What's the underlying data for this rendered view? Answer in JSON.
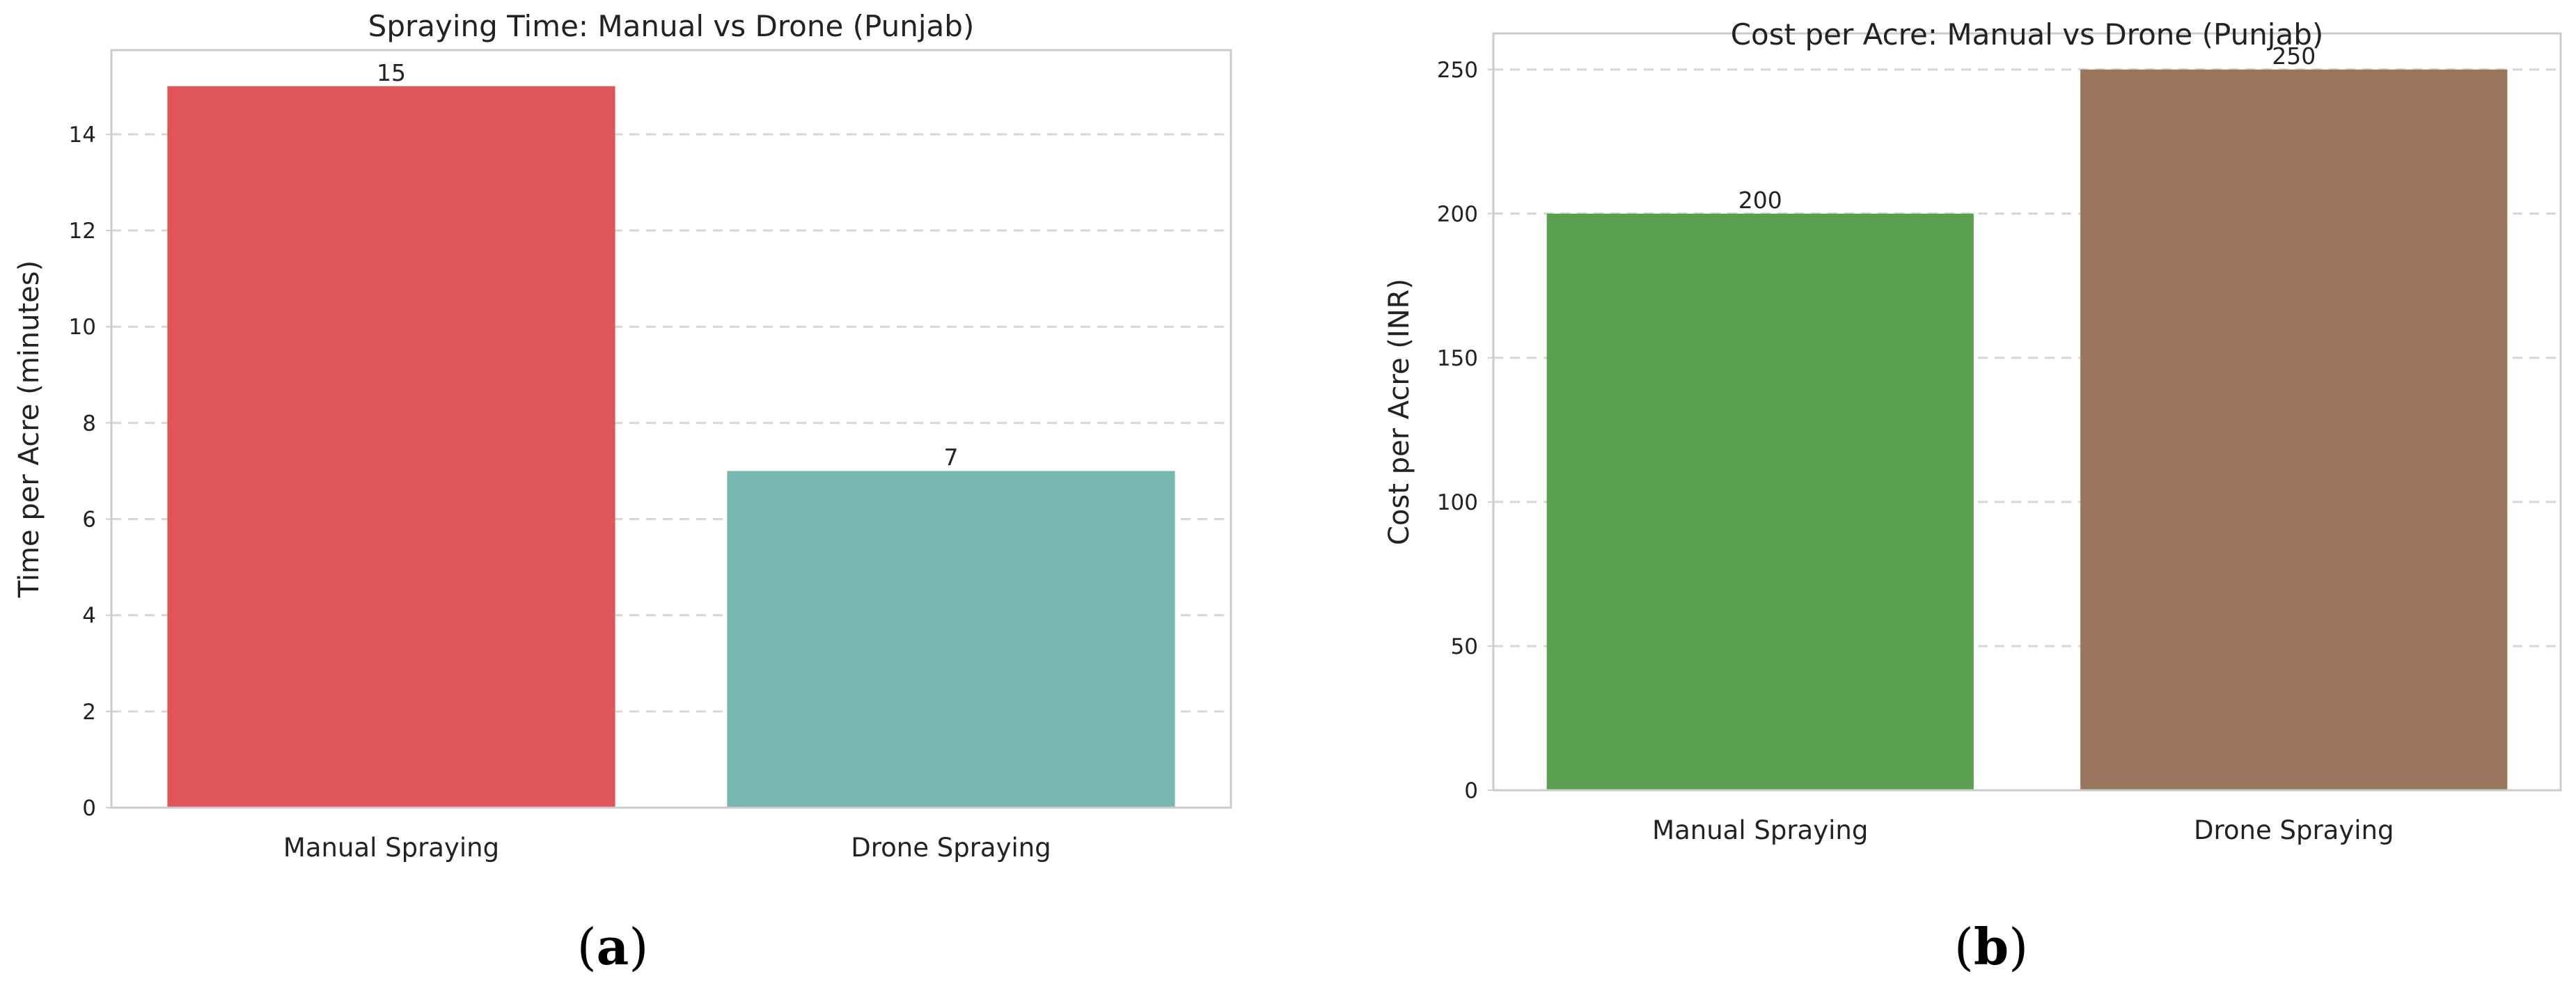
{
  "chart_data": [
    {
      "type": "bar",
      "title": "Spraying Time: Manual vs Drone (Punjab)",
      "xlabel": "",
      "ylabel": "Time per Acre (minutes)",
      "categories": [
        "Manual Spraying",
        "Drone Spraying"
      ],
      "values": [
        15,
        7
      ],
      "data_labels": [
        "15",
        "7"
      ],
      "colors": [
        "#e05658",
        "#78b6b0"
      ],
      "ylim": [
        0,
        15.75
      ],
      "yticks": [
        0,
        2,
        4,
        6,
        8,
        10,
        12,
        14
      ],
      "grid": true,
      "panel_label": {
        "open": "(",
        "letter": "a",
        "close": ")"
      }
    },
    {
      "type": "bar",
      "title": "Cost per Acre: Manual vs Drone (Punjab)",
      "xlabel": "",
      "ylabel": "Cost per Acre (INR)",
      "categories": [
        "Manual Spraying",
        "Drone Spraying"
      ],
      "values": [
        200,
        250
      ],
      "data_labels": [
        "200",
        "250"
      ],
      "colors": [
        "#5aa04f",
        "#9a765d"
      ],
      "ylim": [
        0,
        262.5
      ],
      "yticks": [
        0,
        50,
        100,
        150,
        200,
        250
      ],
      "grid": true,
      "panel_label": {
        "open": "(",
        "letter": "b",
        "close": ")"
      }
    }
  ]
}
